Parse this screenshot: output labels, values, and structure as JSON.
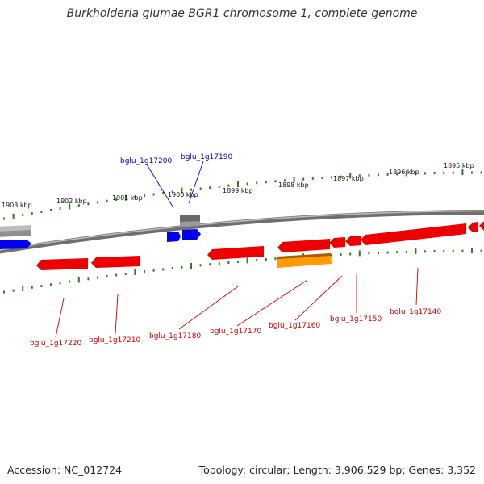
{
  "title": "Burkholderia glumae BGR1 chromosome 1, complete genome",
  "footer": {
    "accession": "Accession: NC_012724",
    "summary": "Topology: circular; Length: 3,906,529 bp; Genes: 3,352"
  },
  "colors": {
    "backbone": "#8a8a8a",
    "scale_ticks": "#2e7d1f",
    "forward_gene": "#0000ee",
    "reverse_gene": "#ee0000",
    "pseudo_gene": "#888888",
    "highlight_gene": "#ff8c00",
    "label_forward": "#0000cc",
    "label_reverse": "#cc0000"
  },
  "scale_labels": [
    "1903 kbp",
    "1902 kbp",
    "1901 kbp",
    "1900 kbp",
    "1899 kbp",
    "1898 kbp",
    "1897 kbp",
    "1896 kbp",
    "1895 kbp"
  ],
  "genes": {
    "forward": [
      {
        "label": "bglu_1g17200",
        "color": "#0000ee"
      },
      {
        "label": "bglu_1g17190",
        "color": "#0000ee"
      }
    ],
    "reverse": [
      {
        "label": "bglu_1g17220",
        "color": "#ee0000"
      },
      {
        "label": "bglu_1g17210",
        "color": "#ee0000"
      },
      {
        "label": "bglu_1g17180",
        "color": "#ee0000"
      },
      {
        "label": "bglu_1g17170",
        "color": "#ee0000"
      },
      {
        "label": "bglu_1g17160",
        "color": "#ff8c00"
      },
      {
        "label": "bglu_1g17150",
        "color": "#ee0000"
      },
      {
        "label": "bglu_1g17140",
        "color": "#ee0000"
      }
    ]
  }
}
